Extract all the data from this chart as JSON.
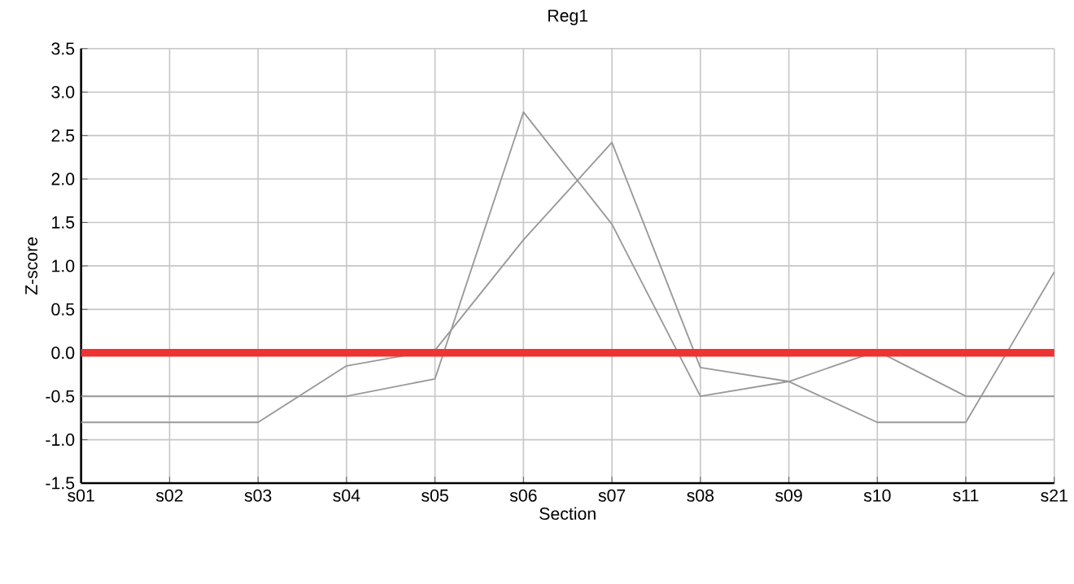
{
  "chart_data": {
    "type": "line",
    "title": "Reg1",
    "xlabel": "Section",
    "ylabel": "Z-score",
    "categories": [
      "s01",
      "s02",
      "s03",
      "s04",
      "s05",
      "s06",
      "s07",
      "s08",
      "s09",
      "s10",
      "s11",
      "s21"
    ],
    "series": [
      {
        "color": "#999999",
        "values": [
          -0.8,
          -0.8,
          -0.8,
          -0.15,
          0.03,
          1.3,
          2.42,
          -0.17,
          -0.33,
          -0.8,
          -0.8,
          0.93
        ]
      },
      {
        "color": "#999999",
        "values": [
          -0.5,
          -0.5,
          -0.5,
          -0.5,
          -0.3,
          2.77,
          1.48,
          -0.5,
          -0.33,
          0.02,
          -0.5,
          -0.5
        ]
      }
    ],
    "ylim": [
      -1.5,
      3.5
    ],
    "yticks": [
      {
        "value": -1.5,
        "label": "-1.5"
      },
      {
        "value": -1.0,
        "label": "-1.0"
      },
      {
        "value": -0.5,
        "label": "-0.5"
      },
      {
        "value": 0,
        "label": "0.0"
      },
      {
        "value": 0.5,
        "label": "0.5"
      },
      {
        "value": 1.0,
        "label": "1.0"
      },
      {
        "value": 1.5,
        "label": "1.5"
      },
      {
        "value": 2.0,
        "label": "2.0"
      },
      {
        "value": 2.5,
        "label": "2.5"
      },
      {
        "value": 3.0,
        "label": "3.0"
      },
      {
        "value": 3.5,
        "label": "3.5"
      }
    ],
    "ref_lines": [
      {
        "axis": "y",
        "value": 0,
        "color": "#ee3333"
      }
    ],
    "grid": true,
    "marker": "none",
    "line_style": "solid"
  }
}
